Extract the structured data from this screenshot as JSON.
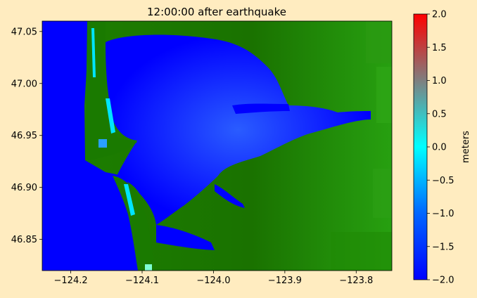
{
  "chart_data": {
    "type": "heatmap",
    "title": "12:00:00 after earthquake",
    "xlabel": "",
    "ylabel": "",
    "xlim": [
      -124.24,
      -123.75
    ],
    "ylim": [
      46.82,
      47.06
    ],
    "x_ticks": [
      -124.2,
      -124.1,
      -124.0,
      -123.9,
      -123.8
    ],
    "x_tick_labels": [
      "−124.2",
      "−124.1",
      "−124.0",
      "−123.9",
      "−123.8"
    ],
    "y_ticks": [
      46.85,
      46.9,
      46.95,
      47.0,
      47.05
    ],
    "y_tick_labels": [
      "46.85",
      "46.90",
      "46.95",
      "47.00",
      "47.05"
    ],
    "colorbar": {
      "label": "meters",
      "range": [
        -2.0,
        2.0
      ],
      "ticks": [
        -2.0,
        -1.5,
        -1.0,
        -0.5,
        0.0,
        0.5,
        1.0,
        1.5,
        2.0
      ],
      "tick_labels": [
        "−2.0",
        "−1.5",
        "−1.0",
        "−0.5",
        "0.0",
        "0.5",
        "1.0",
        "1.5",
        "2.0"
      ],
      "colors": [
        "#0000ff",
        "#0066ff",
        "#00ffff",
        "#7f7f7f",
        "#ff0000"
      ]
    },
    "land_color": "#1a7a00",
    "water_color": "#0000ff",
    "grid": false
  }
}
